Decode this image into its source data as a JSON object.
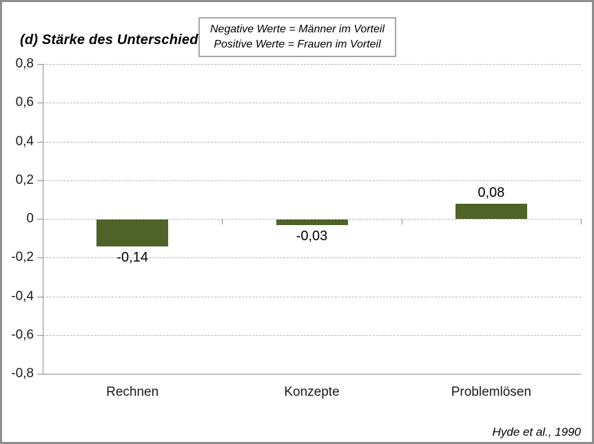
{
  "title": "(d) Stärke des Unterschieds",
  "legend": {
    "line1": "Negative Werte = Männer im Vorteil",
    "line2": "Positive Werte = Frauen im Vorteil"
  },
  "citation": "Hyde et al., 1990",
  "colors": {
    "bar": "#4f6228",
    "gridline": "#b3b3b3",
    "axis": "#8c8c8c",
    "frame_border": "#8e8e8e",
    "legend_border": "#a6a6a6",
    "text": "#000000"
  },
  "chart_data": {
    "type": "bar",
    "title": "(d) Stärke des Unterschieds",
    "categories": [
      "Rechnen",
      "Konzepte",
      "Problemlösen"
    ],
    "values": [
      -0.14,
      -0.03,
      0.08
    ],
    "value_labels": [
      "-0,14",
      "-0,03",
      "0,08"
    ],
    "xlabel": "",
    "ylabel": "",
    "ylim": [
      -0.8,
      0.8
    ],
    "ytick_values": [
      0.8,
      0.6,
      0.4,
      0.2,
      0,
      -0.2,
      -0.4,
      -0.6,
      -0.8
    ],
    "ytick_labels": [
      "0,8",
      "0,6",
      "0,4",
      "0,2",
      "0",
      "-0,2",
      "-0,4",
      "-0,6",
      "-0,8"
    ],
    "grid": "horizontal-dashed",
    "legend_position": "top-center",
    "annotations": [
      "Negative Werte = Männer im Vorteil",
      "Positive Werte = Frauen im Vorteil",
      "Hyde et al., 1990"
    ]
  }
}
